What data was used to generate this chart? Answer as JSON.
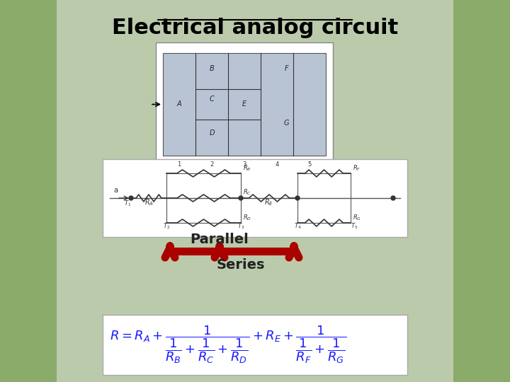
{
  "title": "Electrical analog circuit",
  "title_fontsize": 22,
  "title_underline": true,
  "bg_color": "#c8d8b0",
  "panel_bg": "#e8e8e8",
  "arrow_color": "#aa0000",
  "parallel_label": "Parallel",
  "series_label": "Series",
  "formula_color": "#1a1aff",
  "formula_black": "#000000",
  "grid_image_bg": "#b0b8c8",
  "circuit_image_bg": "#ffffff"
}
